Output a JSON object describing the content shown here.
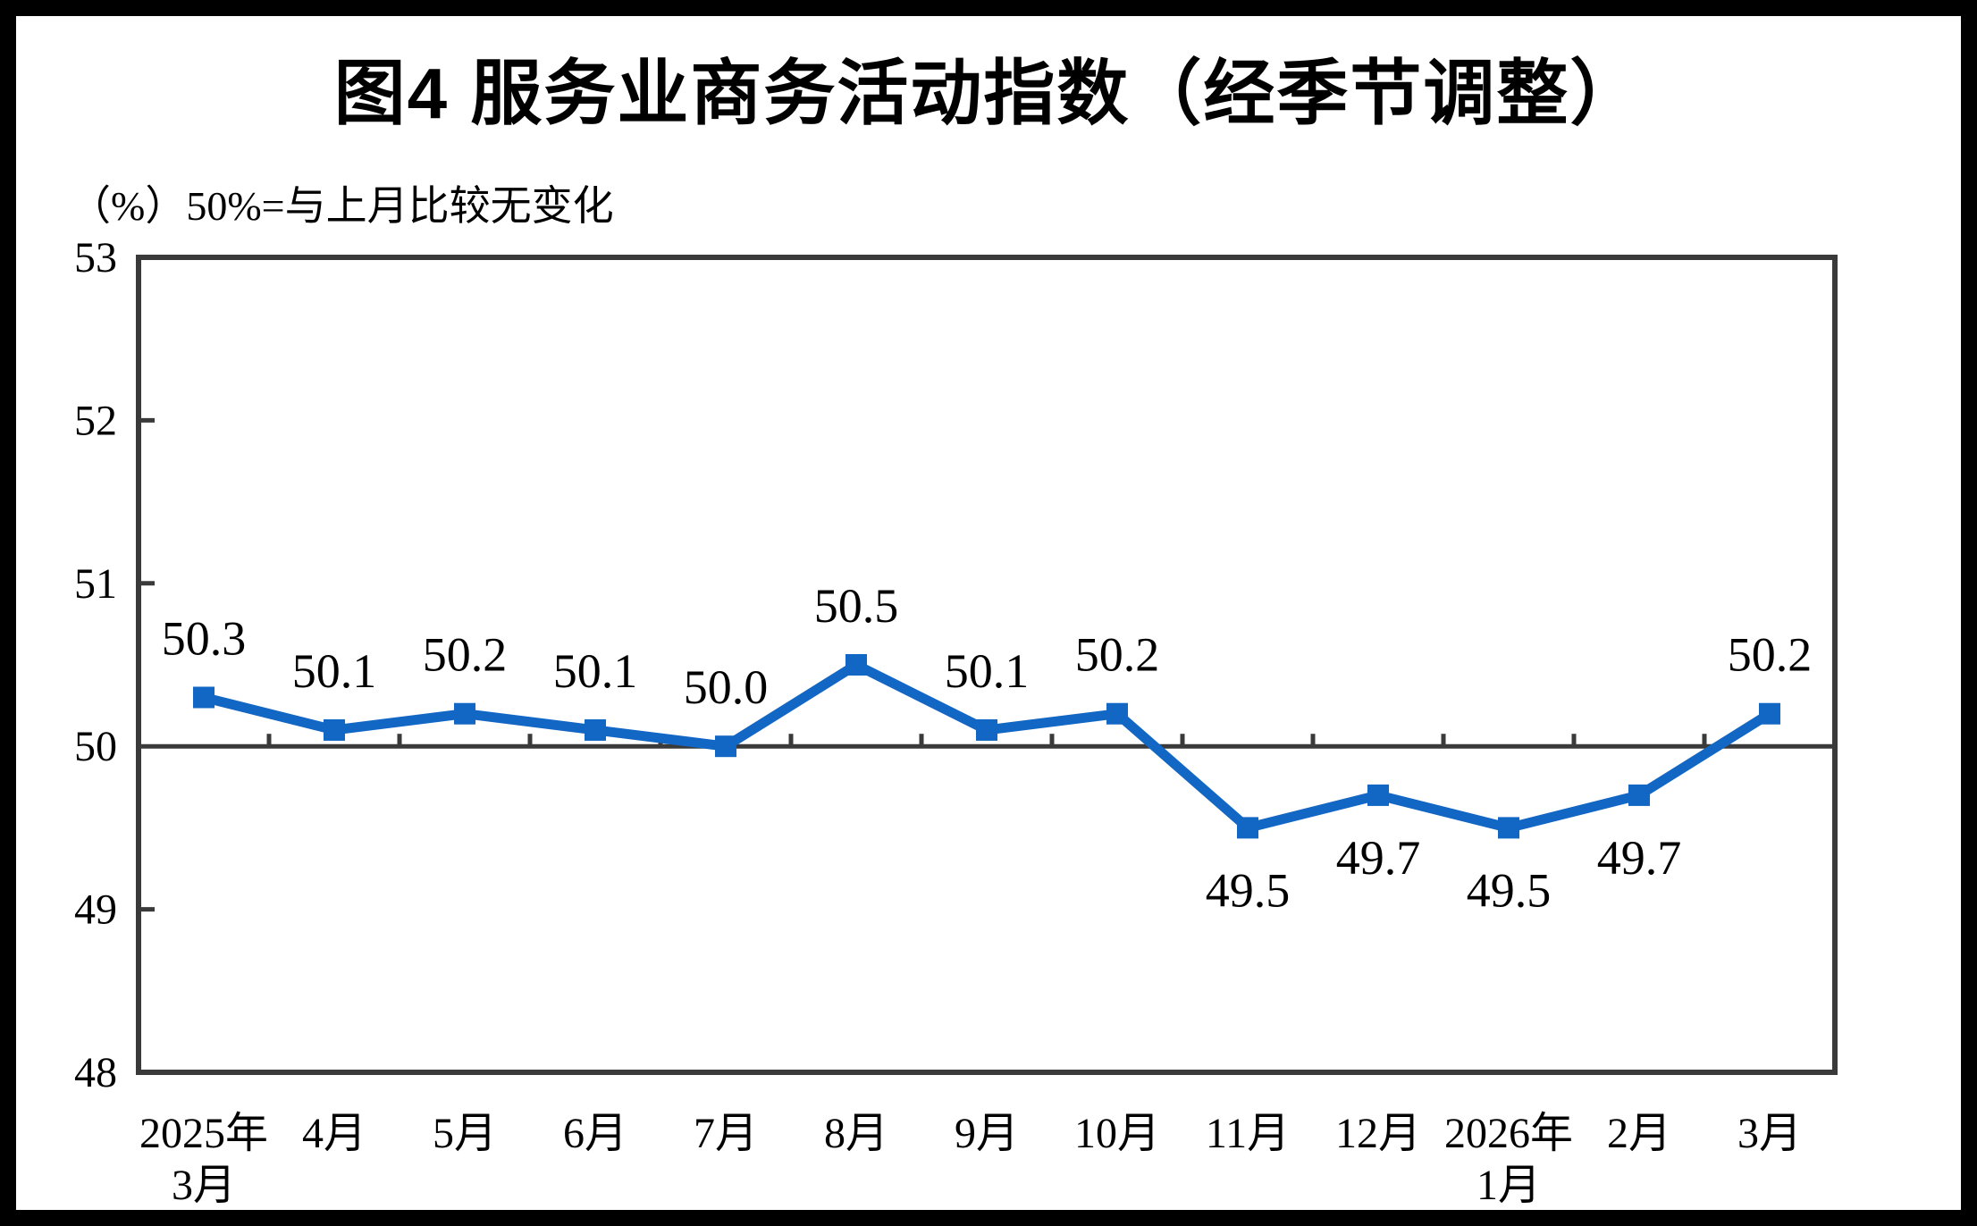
{
  "page": {
    "background_color": "#ffffff",
    "outer_border_color": "#000000"
  },
  "chart_data": {
    "type": "line",
    "title": "图4  服务业商务活动指数（经季节调整）",
    "subtitle": "（%）50%=与上月比较无变化",
    "categories": [
      "2025年\n3月",
      "4月",
      "5月",
      "6月",
      "7月",
      "8月",
      "9月",
      "10月",
      "11月",
      "12月",
      "2026年\n1月",
      "2月",
      "3月"
    ],
    "series": [
      {
        "name": "服务业商务活动指数",
        "values": [
          50.3,
          50.1,
          50.2,
          50.1,
          50.0,
          50.5,
          50.1,
          50.2,
          49.5,
          49.7,
          49.5,
          49.7,
          50.2
        ]
      }
    ],
    "data_labels": [
      "50.3",
      "50.1",
      "50.2",
      "50.1",
      "50.0",
      "50.5",
      "50.1",
      "50.2",
      "49.5",
      "49.7",
      "49.5",
      "49.7",
      "50.2"
    ],
    "label_side": [
      "above",
      "above",
      "above",
      "above",
      "above",
      "above",
      "above",
      "above",
      "below",
      "below",
      "below",
      "below",
      "above"
    ],
    "xlabel": "",
    "ylabel": "",
    "ylim": [
      48,
      53
    ],
    "yticks": [
      48,
      49,
      50,
      51,
      52,
      53
    ],
    "reference_line": 50,
    "grid": false,
    "legend": "none",
    "plot_border": "box",
    "line_color": "#1266c4",
    "marker": "square",
    "axis_color": "#3a3a3a",
    "text_color": "#000000"
  }
}
